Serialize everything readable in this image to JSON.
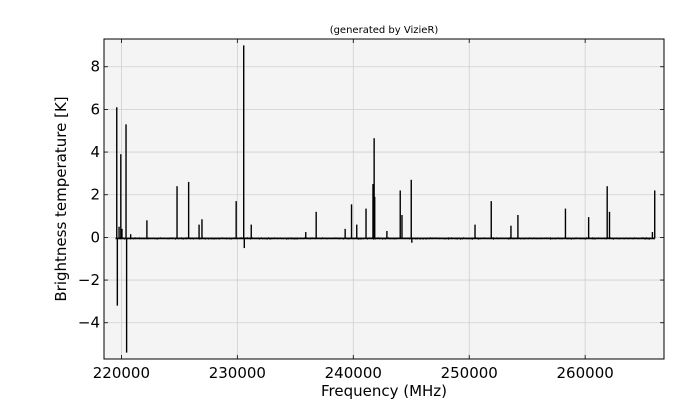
{
  "chart_data": {
    "type": "line",
    "title": "(generated by VizieR)",
    "xlabel": "Frequency (MHz)",
    "ylabel": "Brightness temperature [K]",
    "xlim": [
      218500,
      266800
    ],
    "ylim": [
      -5.7,
      9.3
    ],
    "xticks": [
      220000,
      230000,
      240000,
      250000,
      260000
    ],
    "xtick_labels": [
      "220000",
      "230000",
      "240000",
      "250000",
      "260000"
    ],
    "yticks": [
      -4,
      -2,
      0,
      2,
      4,
      6,
      8
    ],
    "ytick_labels": [
      "−4",
      "−2",
      "0",
      "2",
      "4",
      "6",
      "8"
    ],
    "grid": true,
    "background_color": "#f4f4f4",
    "line_color": "#000000",
    "baseline": {
      "x_start": 219500,
      "x_end": 266000,
      "y": -0.05
    },
    "series": [
      {
        "values": [
          {
            "x": 219600,
            "y": 6.1
          },
          {
            "x": 219650,
            "y": -3.2
          },
          {
            "x": 219800,
            "y": 0.5
          },
          {
            "x": 219950,
            "y": 3.9
          },
          {
            "x": 220050,
            "y": 0.4
          },
          {
            "x": 220400,
            "y": 5.3
          },
          {
            "x": 220450,
            "y": -5.4
          },
          {
            "x": 220800,
            "y": 0.15
          },
          {
            "x": 222200,
            "y": 0.8
          },
          {
            "x": 224800,
            "y": 2.4
          },
          {
            "x": 225800,
            "y": 2.6
          },
          {
            "x": 226700,
            "y": 0.6
          },
          {
            "x": 226950,
            "y": 0.85
          },
          {
            "x": 229900,
            "y": 1.7
          },
          {
            "x": 230550,
            "y": 9.0
          },
          {
            "x": 230600,
            "y": -0.5
          },
          {
            "x": 231200,
            "y": 0.6
          },
          {
            "x": 235900,
            "y": 0.25
          },
          {
            "x": 236800,
            "y": 1.2
          },
          {
            "x": 239300,
            "y": 0.4
          },
          {
            "x": 239850,
            "y": 1.55
          },
          {
            "x": 240300,
            "y": 0.6
          },
          {
            "x": 241100,
            "y": 1.35
          },
          {
            "x": 241700,
            "y": 2.5
          },
          {
            "x": 241800,
            "y": 4.65
          },
          {
            "x": 241850,
            "y": 1.9
          },
          {
            "x": 242900,
            "y": 0.3
          },
          {
            "x": 244050,
            "y": 2.2
          },
          {
            "x": 244200,
            "y": 1.05
          },
          {
            "x": 245000,
            "y": 2.7
          },
          {
            "x": 245050,
            "y": -0.25
          },
          {
            "x": 250500,
            "y": 0.6
          },
          {
            "x": 251900,
            "y": 1.7
          },
          {
            "x": 253600,
            "y": 0.55
          },
          {
            "x": 254200,
            "y": 1.05
          },
          {
            "x": 258300,
            "y": 1.35
          },
          {
            "x": 260300,
            "y": 0.95
          },
          {
            "x": 261900,
            "y": 2.4
          },
          {
            "x": 262100,
            "y": 1.2
          },
          {
            "x": 265800,
            "y": 0.25
          },
          {
            "x": 266000,
            "y": 2.2
          }
        ]
      }
    ]
  }
}
